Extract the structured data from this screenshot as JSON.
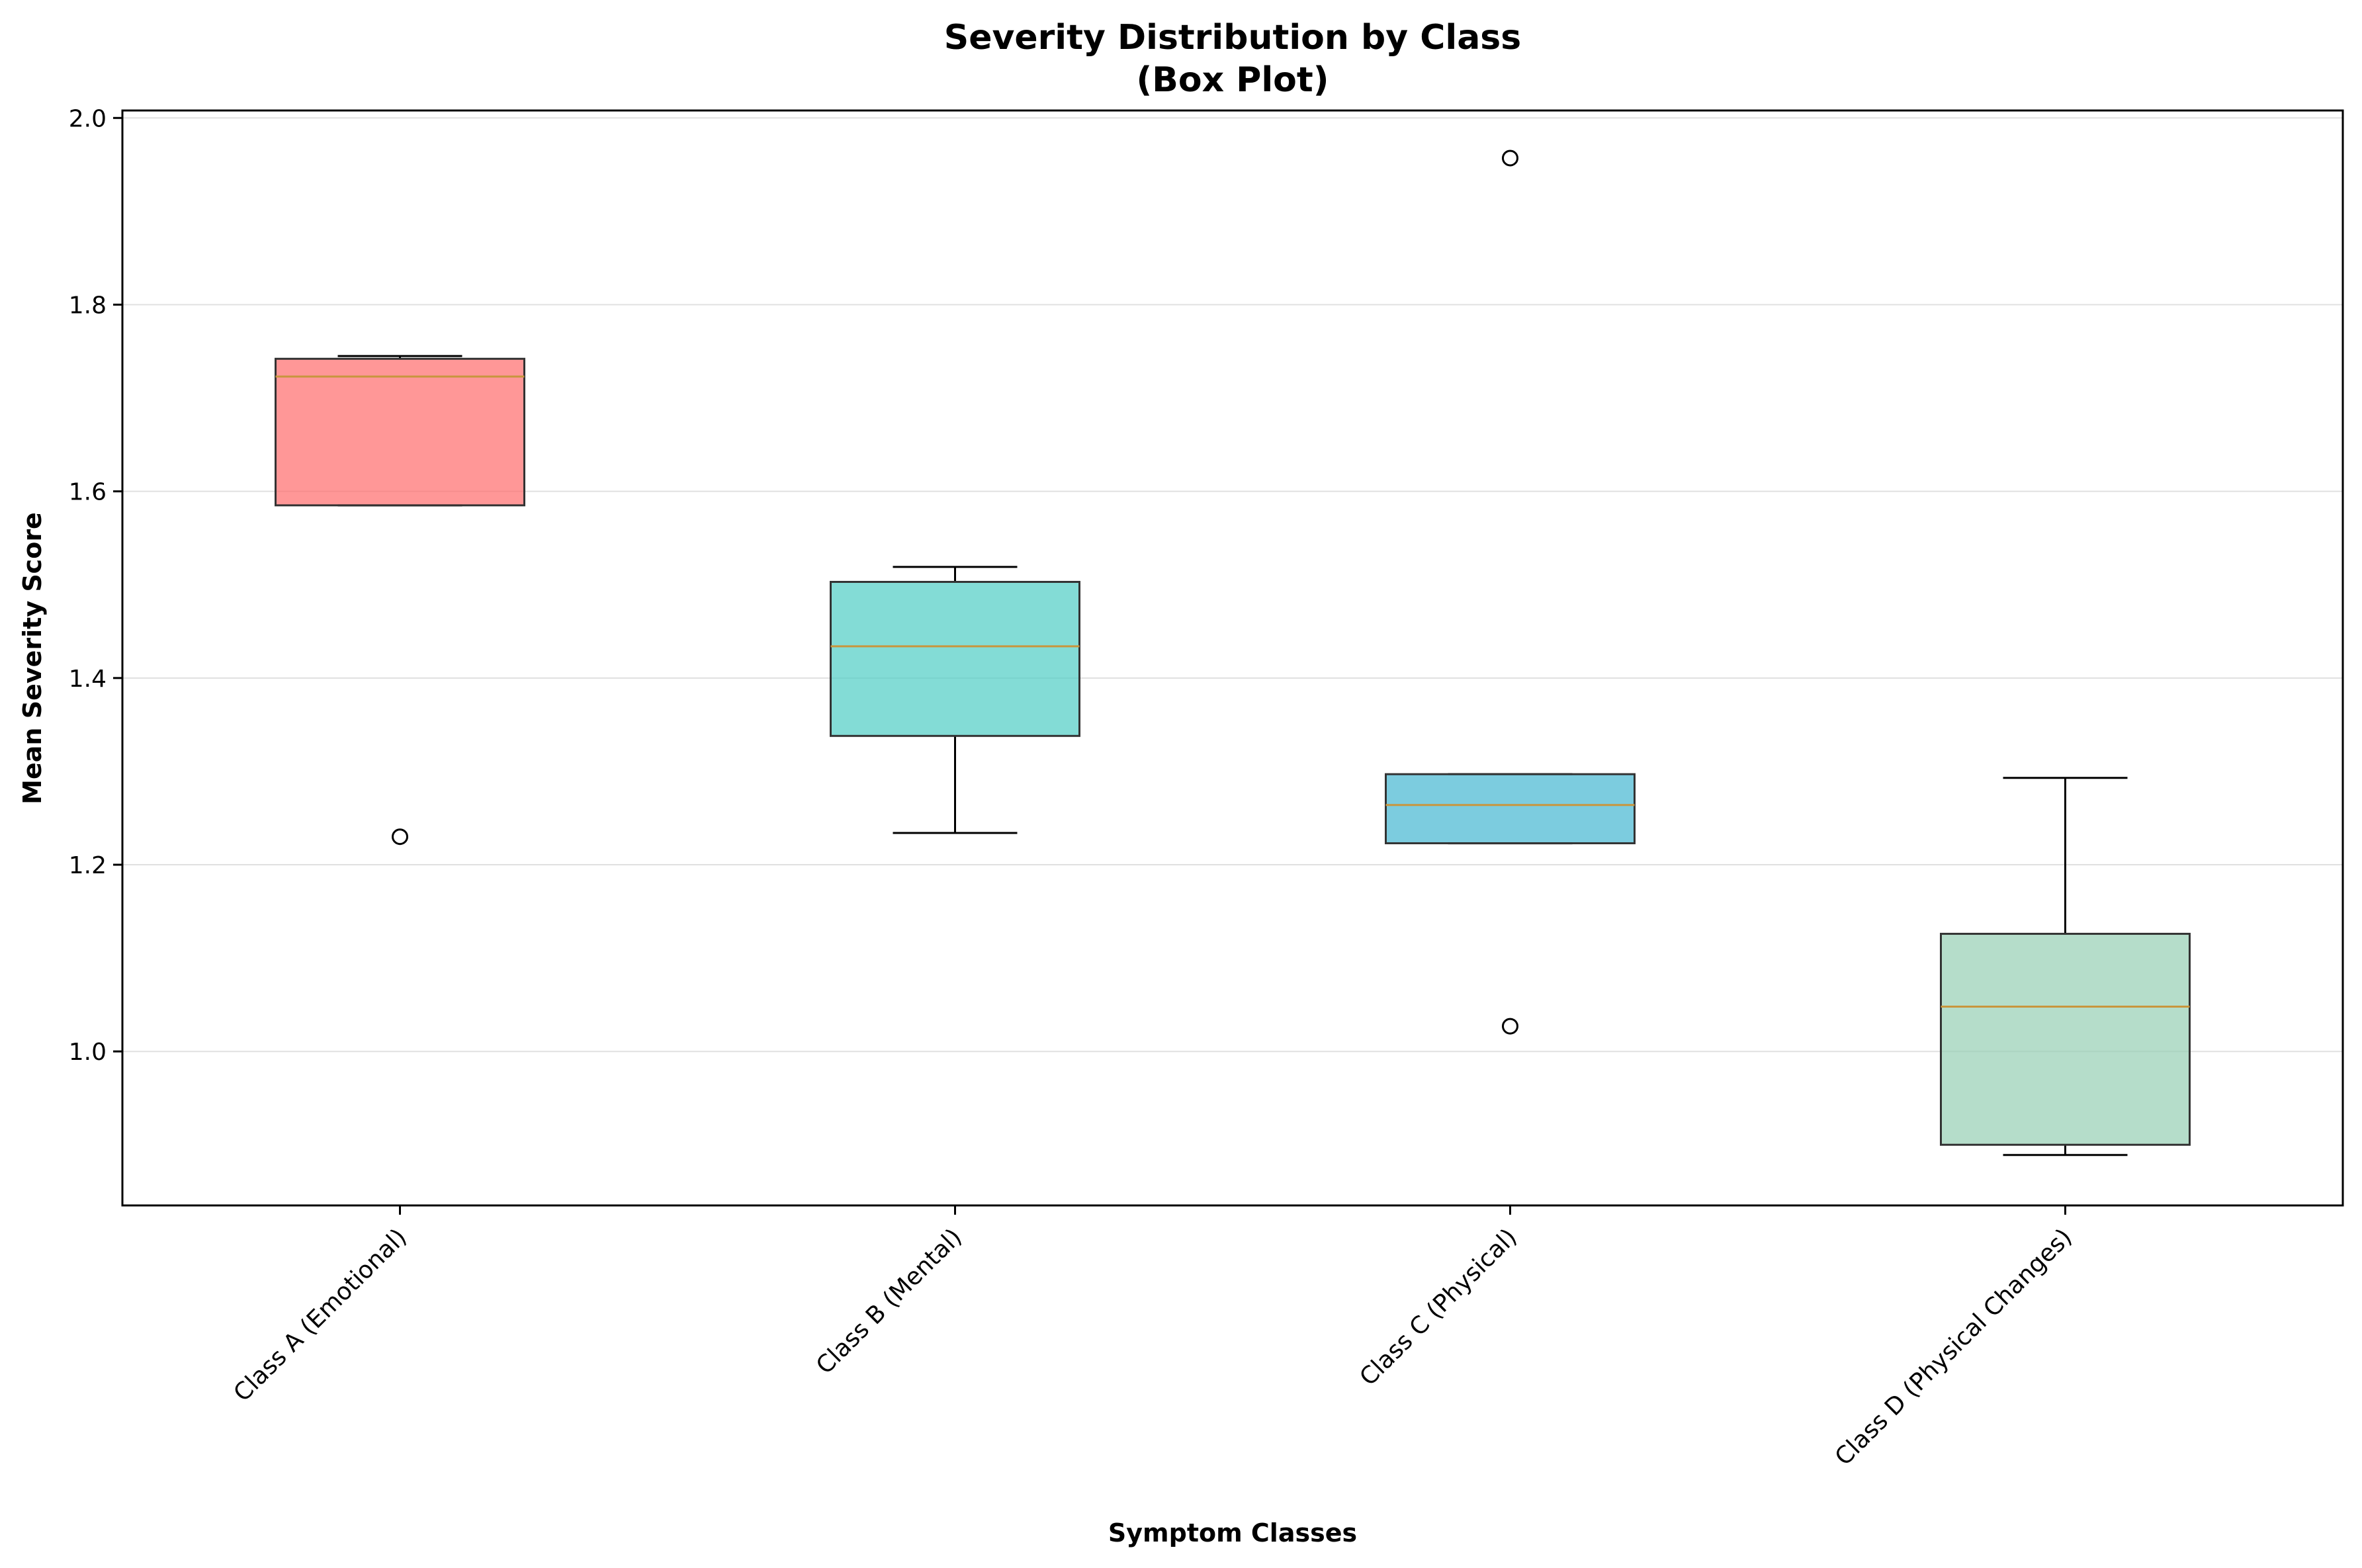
{
  "chart_data": {
    "type": "box",
    "title": "Severity Distribution by Class",
    "subtitle": "(Box Plot)",
    "xlabel": "Symptom Classes",
    "ylabel": "Mean Severity Score",
    "ylim": [
      0.835,
      2.008
    ],
    "yticks": [
      "1.0",
      "1.2",
      "1.4",
      "1.6",
      "1.8",
      "2.0"
    ],
    "grid": "y",
    "categories": [
      "Class A (Emotional)",
      "Class B (Mental)",
      "Class C (Physical)",
      "Class D (Physical Changes)"
    ],
    "boxes": [
      {
        "whisker_low": 1.585,
        "q1": 1.585,
        "median": 1.723,
        "q3": 1.742,
        "whisker_high": 1.745,
        "outliers": [
          1.23
        ],
        "color": "#FF6B6B"
      },
      {
        "whisker_low": 1.234,
        "q1": 1.338,
        "median": 1.434,
        "q3": 1.503,
        "whisker_high": 1.519,
        "outliers": [],
        "color": "#4ECDC4"
      },
      {
        "whisker_low": 1.223,
        "q1": 1.223,
        "median": 1.264,
        "q3": 1.297,
        "whisker_high": 1.297,
        "outliers": [
          1.957,
          1.027
        ],
        "color": "#45B7D1"
      },
      {
        "whisker_low": 0.889,
        "q1": 0.9,
        "median": 1.048,
        "q3": 1.126,
        "whisker_high": 1.293,
        "outliers": [],
        "color": "#96CEB4"
      }
    ],
    "median_color": "#C8963E"
  }
}
